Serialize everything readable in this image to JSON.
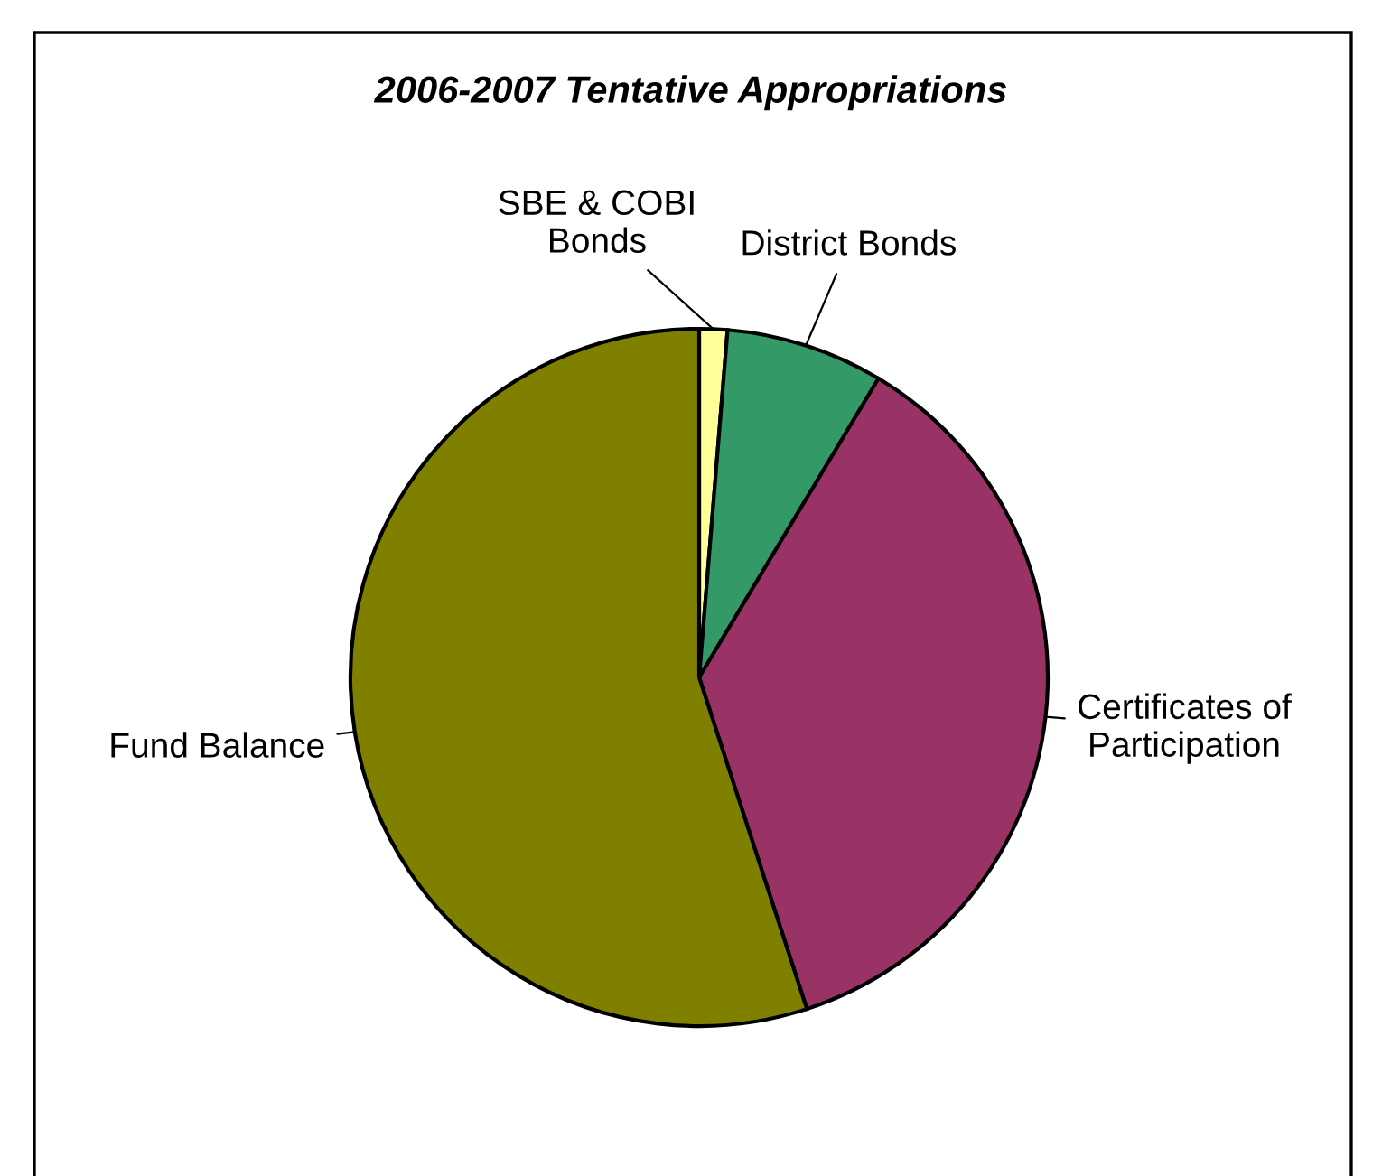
{
  "chart_data": {
    "type": "pie",
    "title": "2006-2007 Tentative Appropriations",
    "categories": [
      "SBE & COBI\nBonds",
      "District Bonds",
      "Certificates of\nParticipation",
      "Fund Balance"
    ],
    "values": [
      1.3,
      7.3,
      36.4,
      55.0
    ],
    "colors": [
      "#ffff99",
      "#339966",
      "#993366",
      "#808000"
    ],
    "legend": false
  }
}
